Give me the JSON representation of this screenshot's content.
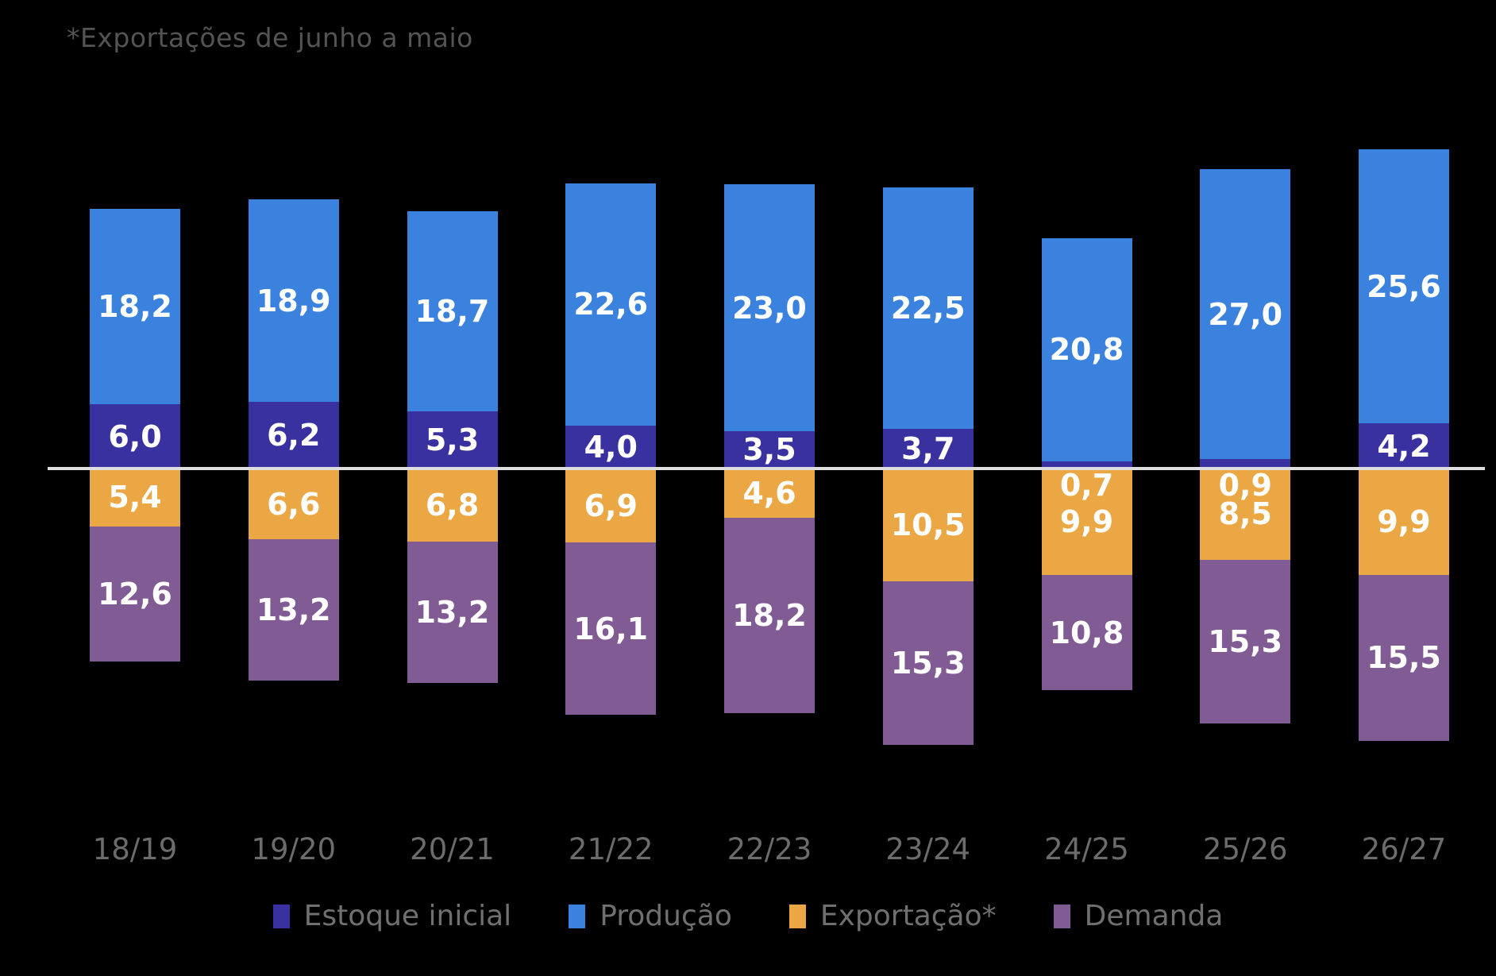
{
  "note": "*Exportações de junho a maio",
  "colors": {
    "background": "#000000",
    "axis_line": "#dedede",
    "value_label": "#ffffff",
    "note_text": "#545454",
    "x_label_text": "#6c6c6c",
    "legend_text": "#707070"
  },
  "chart_data": {
    "type": "bar",
    "stacked": true,
    "diverging": true,
    "title": "",
    "annotation": "*Exportações de junho a maio",
    "xlabel": "",
    "ylabel": "",
    "grid": false,
    "legend_position": "bottom",
    "categories": [
      "18/19",
      "19/20",
      "20/21",
      "21/22",
      "22/23",
      "23/24",
      "24/25",
      "25/26",
      "26/27"
    ],
    "series": [
      {
        "name": "Estoque inicial",
        "color": "#3a31a0",
        "stack": "up",
        "values": [
          6.0,
          6.2,
          5.3,
          4.0,
          3.5,
          3.7,
          0.7,
          0.9,
          4.2
        ],
        "labels": [
          "6,0",
          "6,2",
          "5,3",
          "4,0",
          "3,5",
          "3,7",
          "0,7",
          "0,9",
          "4,2"
        ]
      },
      {
        "name": "Produção",
        "color": "#3a82de",
        "stack": "up",
        "values": [
          18.2,
          18.9,
          18.7,
          22.6,
          23.0,
          22.5,
          20.8,
          27.0,
          25.6
        ],
        "labels": [
          "18,2",
          "18,9",
          "18,7",
          "22,6",
          "23,0",
          "22,5",
          "20,8",
          "27,0",
          "25,6"
        ]
      },
      {
        "name": "Exportação*",
        "color": "#eaa743",
        "stack": "down",
        "values": [
          5.4,
          6.6,
          6.8,
          6.9,
          4.6,
          10.5,
          9.9,
          8.5,
          9.9
        ],
        "labels": [
          "5,4",
          "6,6",
          "6,8",
          "6,9",
          "4,6",
          "10,5",
          "9,9",
          "8,5",
          "9,9"
        ]
      },
      {
        "name": "Demanda",
        "color": "#815b93",
        "stack": "down",
        "values": [
          12.6,
          13.2,
          13.2,
          16.1,
          18.2,
          15.3,
          10.8,
          15.3,
          15.5
        ],
        "labels": [
          "12,6",
          "13,2",
          "13,2",
          "16,1",
          "18,2",
          "15,3",
          "10,8",
          "15,3",
          "15,5"
        ]
      }
    ]
  }
}
